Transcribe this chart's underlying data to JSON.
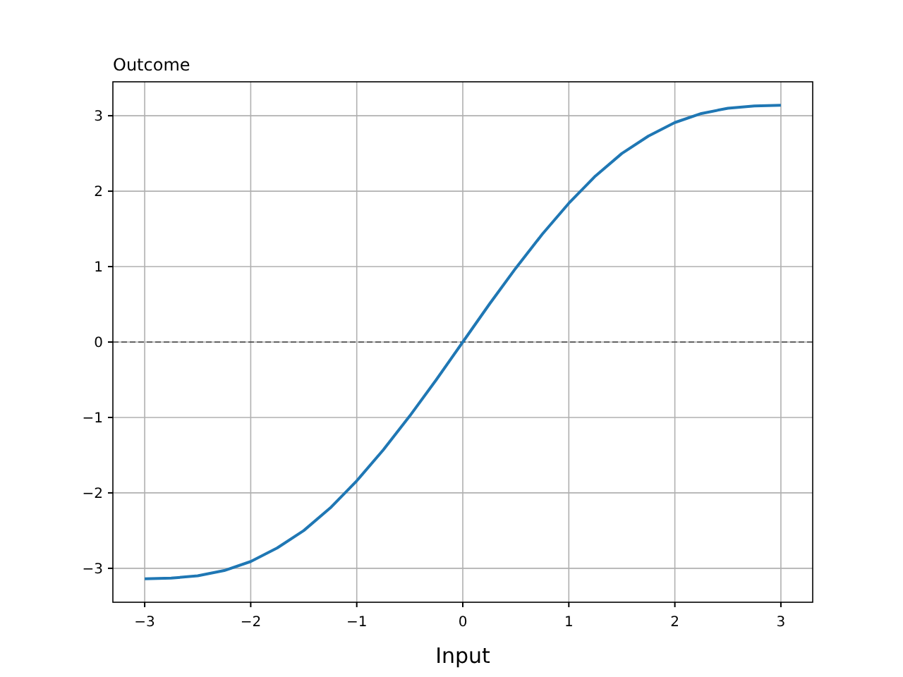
{
  "chart_data": {
    "type": "line",
    "title": "Outcome",
    "xlabel": "Input",
    "x": [
      -3,
      -2.75,
      -2.5,
      -2.25,
      -2,
      -1.75,
      -1.5,
      -1.25,
      -1,
      -0.75,
      -0.5,
      -0.25,
      0,
      0.25,
      0.5,
      0.75,
      1,
      1.25,
      1.5,
      1.75,
      2,
      2.25,
      2.5,
      2.75,
      3
    ],
    "series": [
      {
        "color": "#1f77b4",
        "values": [
          -3.14,
          -3.13,
          -3.1,
          -3.03,
          -2.91,
          -2.73,
          -2.5,
          -2.2,
          -1.84,
          -1.43,
          -0.98,
          -0.5,
          0,
          0.5,
          0.98,
          1.43,
          1.84,
          2.2,
          2.5,
          2.73,
          2.91,
          3.03,
          3.1,
          3.13,
          3.14
        ]
      }
    ],
    "xlim": [
      -3.3,
      3.3
    ],
    "ylim": [
      -3.45,
      3.45
    ],
    "xticks": [
      {
        "value": -3,
        "label": "−3"
      },
      {
        "value": -2,
        "label": "−2"
      },
      {
        "value": -1,
        "label": "−1"
      },
      0,
      1,
      2,
      3
    ],
    "yticks": [
      {
        "value": -3,
        "label": "−3"
      },
      {
        "value": -2,
        "label": "−2"
      },
      {
        "value": -1,
        "label": "−1"
      },
      0,
      1,
      2,
      3
    ],
    "grid": true,
    "ref_lines": [
      {
        "axis": "y",
        "value": 0,
        "color": "#000000",
        "line_style": "dashed"
      }
    ]
  }
}
